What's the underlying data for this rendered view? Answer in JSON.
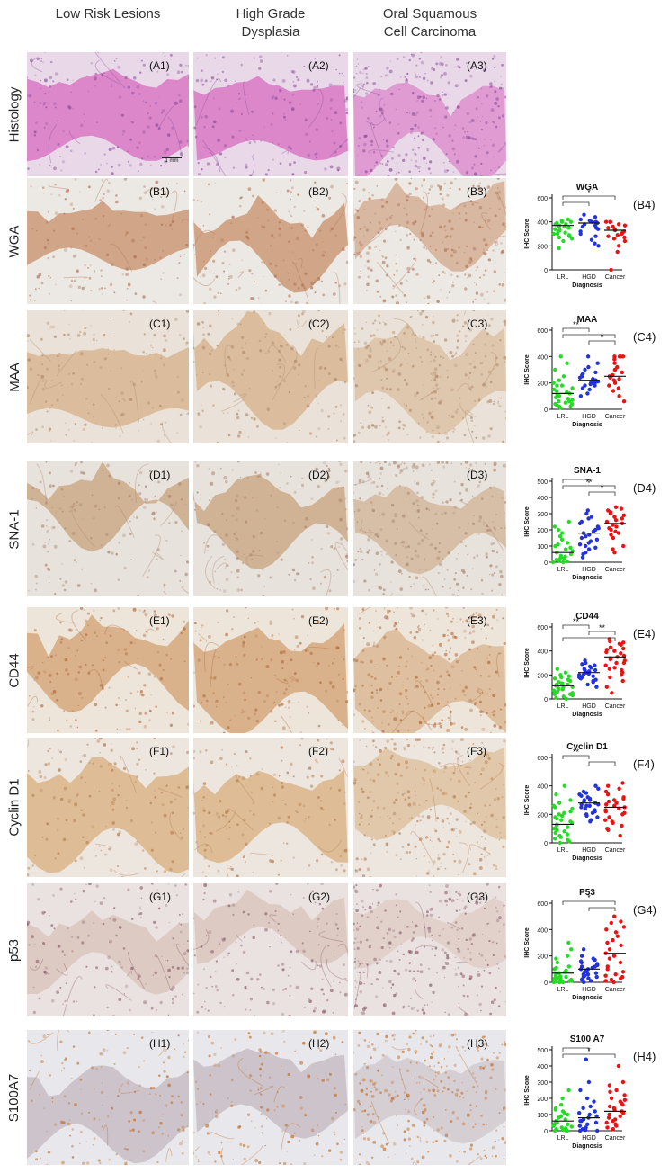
{
  "columns": [
    "Low Risk Lesions",
    "High Grade Dysplasia",
    "Oral Squamous Cell Carcinoma"
  ],
  "column_lines": [
    [
      "Low Risk Lesions"
    ],
    [
      "High Grade",
      "Dysplasia"
    ],
    [
      "Oral Squamous",
      "Cell Carcinoma"
    ]
  ],
  "rows": [
    {
      "label": "Histology",
      "panels": [
        "(A1)",
        "(A2)",
        "(A3)"
      ],
      "scalebar": "1 mm"
    },
    {
      "label": "WGA",
      "panels": [
        "(B1)",
        "(B2)",
        "(B3)"
      ],
      "plot_label": "(B4)"
    },
    {
      "label": "MAA",
      "panels": [
        "(C1)",
        "(C2)",
        "(C3)"
      ],
      "plot_label": "(C4)"
    },
    {
      "label": "SNA-1",
      "panels": [
        "(D1)",
        "(D2)",
        "(D3)"
      ],
      "plot_label": "(D4)"
    },
    {
      "label": "CD44",
      "panels": [
        "(E1)",
        "(E2)",
        "(E3)"
      ],
      "plot_label": "(E4)"
    },
    {
      "label": "Cyclin D1",
      "panels": [
        "(F1)",
        "(F2)",
        "(F3)"
      ],
      "plot_label": "(F4)"
    },
    {
      "label": "p53",
      "panels": [
        "(G1)",
        "(G2)",
        "(G3)"
      ],
      "plot_label": "(G4)"
    },
    {
      "label": "S100A7",
      "panels": [
        "(H1)",
        "(H2)",
        "(H3)"
      ],
      "plot_label": "(H4)"
    }
  ],
  "colors": {
    "LRL": "#22dd22",
    "HGD": "#2233dd",
    "Cancer": "#ee1111"
  },
  "chart_data": [
    {
      "type": "scatter",
      "title": "WGA",
      "xlabel": "Diagnosis",
      "ylabel": "IHC Score",
      "categories": [
        "LRL",
        "HGD",
        "Cancer"
      ],
      "ylim": [
        0,
        600
      ],
      "yticks": [
        0,
        200,
        400,
        600
      ],
      "series": [
        {
          "values": [
            380,
            400,
            360,
            340,
            300,
            420,
            390,
            370,
            350,
            330,
            310,
            280,
            260,
            240,
            180,
            400,
            410,
            360,
            320,
            290,
            380,
            350,
            300,
            270
          ],
          "mean": 370
        },
        {
          "values": [
            400,
            420,
            380,
            360,
            340,
            300,
            280,
            250,
            440,
            460,
            410,
            390,
            370,
            320,
            220,
            200,
            400,
            350
          ],
          "mean": 390
        },
        {
          "values": [
            400,
            400,
            400,
            400,
            380,
            360,
            340,
            320,
            300,
            280,
            260,
            240,
            200,
            150,
            0,
            330,
            310,
            350,
            370,
            290,
            270
          ],
          "mean": 330
        }
      ],
      "comparisons": [
        {
          "from": "LRL",
          "to": "Cancer",
          "label": "*"
        },
        {
          "from": "LRL",
          "to": "HGD",
          "label": ""
        }
      ]
    },
    {
      "type": "scatter",
      "title": "MAA",
      "xlabel": "Diagnosis",
      "ylabel": "IHC Score",
      "categories": [
        "LRL",
        "HGD",
        "Cancer"
      ],
      "ylim": [
        0,
        600
      ],
      "yticks": [
        0,
        200,
        400,
        600
      ],
      "series": [
        {
          "values": [
            20,
            40,
            60,
            80,
            100,
            120,
            140,
            160,
            180,
            200,
            250,
            300,
            350,
            400,
            30,
            50,
            70,
            90,
            110,
            130,
            10,
            20,
            40,
            60,
            150,
            180,
            220
          ],
          "mean": 120
        },
        {
          "values": [
            150,
            180,
            200,
            220,
            240,
            260,
            280,
            300,
            320,
            350,
            400,
            160,
            190,
            210,
            230,
            250,
            270,
            120,
            100,
            200,
            180,
            220
          ],
          "mean": 220
        },
        {
          "values": [
            400,
            400,
            400,
            400,
            400,
            380,
            350,
            320,
            300,
            280,
            260,
            240,
            220,
            200,
            180,
            160,
            140,
            100,
            60,
            300,
            250,
            230
          ],
          "mean": 250
        }
      ],
      "comparisons": [
        {
          "from": "LRL",
          "to": "HGD",
          "label": "**"
        },
        {
          "from": "LRL",
          "to": "Cancer",
          "label": ""
        },
        {
          "from": "HGD",
          "to": "Cancer",
          "label": "*"
        }
      ]
    },
    {
      "type": "scatter",
      "title": "SNA-1",
      "xlabel": "Diagnosis",
      "ylabel": "IHC Score",
      "categories": [
        "LRL",
        "HGD",
        "Cancer"
      ],
      "ylim": [
        0,
        500
      ],
      "yticks": [
        0,
        100,
        200,
        300,
        400,
        500
      ],
      "series": [
        {
          "values": [
            0,
            10,
            20,
            30,
            40,
            50,
            60,
            80,
            100,
            120,
            140,
            160,
            180,
            200,
            220,
            250,
            0,
            5,
            15,
            25,
            35,
            70,
            90,
            110
          ],
          "mean": 60
        },
        {
          "values": [
            50,
            80,
            100,
            120,
            150,
            180,
            200,
            220,
            250,
            280,
            300,
            320,
            60,
            90,
            130,
            160,
            190,
            210,
            240,
            270,
            110,
            140,
            170,
            30
          ],
          "mean": 180
        },
        {
          "values": [
            150,
            180,
            200,
            220,
            240,
            260,
            280,
            300,
            320,
            340,
            170,
            190,
            210,
            230,
            250,
            270,
            290,
            310,
            100,
            80,
            60,
            330
          ],
          "mean": 240
        }
      ],
      "comparisons": [
        {
          "from": "LRL",
          "to": "HGD",
          "label": ""
        },
        {
          "from": "LRL",
          "to": "Cancer",
          "label": "**"
        },
        {
          "from": "HGD",
          "to": "Cancer",
          "label": "*"
        }
      ]
    },
    {
      "type": "scatter",
      "title": "CD44",
      "xlabel": "Diagnosis",
      "ylabel": "IHC Score",
      "categories": [
        "LRL",
        "HGD",
        "Cancer"
      ],
      "ylim": [
        0,
        600
      ],
      "yticks": [
        0,
        200,
        400,
        600
      ],
      "series": [
        {
          "values": [
            0,
            20,
            40,
            60,
            80,
            100,
            120,
            140,
            160,
            180,
            200,
            220,
            250,
            10,
            30,
            50,
            70,
            90,
            110,
            130,
            150,
            170,
            190,
            60,
            80,
            100,
            120,
            40
          ],
          "mean": 110
        },
        {
          "values": [
            100,
            140,
            160,
            180,
            200,
            220,
            240,
            260,
            280,
            300,
            320,
            150,
            170,
            190,
            210,
            230,
            250,
            270,
            200,
            220,
            240,
            180,
            120,
            290
          ],
          "mean": 220
        },
        {
          "values": [
            100,
            150,
            200,
            250,
            300,
            350,
            400,
            420,
            450,
            480,
            500,
            380,
            360,
            340,
            320,
            280,
            260,
            240,
            220,
            430,
            460,
            470,
            390,
            410,
            300,
            330,
            50,
            180
          ],
          "mean": 350
        }
      ],
      "comparisons": [
        {
          "from": "LRL",
          "to": "HGD",
          "label": "**"
        },
        {
          "from": "HGD",
          "to": "Cancer",
          "label": "**"
        },
        {
          "from": "LRL",
          "to": "Cancer",
          "label": ""
        }
      ]
    },
    {
      "type": "scatter",
      "title": "Cyclin D1",
      "xlabel": "Diagnosis",
      "ylabel": "IHC Score",
      "categories": [
        "LRL",
        "HGD",
        "Cancer"
      ],
      "ylim": [
        0,
        600
      ],
      "yticks": [
        0,
        200,
        400,
        600
      ],
      "series": [
        {
          "values": [
            0,
            20,
            40,
            60,
            80,
            100,
            120,
            140,
            160,
            180,
            200,
            220,
            240,
            260,
            300,
            340,
            400,
            10,
            30,
            50,
            70,
            90,
            110,
            130,
            150,
            170,
            190,
            210,
            250,
            280
          ],
          "mean": 130
        },
        {
          "values": [
            150,
            180,
            200,
            220,
            240,
            260,
            280,
            300,
            320,
            340,
            360,
            380,
            400,
            160,
            190,
            210,
            230,
            250,
            270,
            290,
            310,
            330,
            350,
            270,
            260,
            300
          ],
          "mean": 280
        },
        {
          "values": [
            50,
            100,
            150,
            200,
            220,
            240,
            260,
            280,
            300,
            320,
            340,
            360,
            380,
            400,
            420,
            180,
            160,
            140,
            120,
            90,
            210,
            230,
            250,
            270,
            290,
            310
          ],
          "mean": 250
        }
      ],
      "comparisons": [
        {
          "from": "LRL",
          "to": "HGD",
          "label": "**"
        },
        {
          "from": "HGD",
          "to": "Cancer",
          "label": ""
        }
      ]
    },
    {
      "type": "scatter",
      "title": "P53",
      "xlabel": "Diagnosis",
      "ylabel": "IHC Score",
      "categories": [
        "LRL",
        "HGD",
        "Cancer"
      ],
      "ylim": [
        0,
        600
      ],
      "yticks": [
        0,
        200,
        400,
        600
      ],
      "series": [
        {
          "values": [
            0,
            10,
            20,
            30,
            40,
            50,
            60,
            80,
            100,
            120,
            150,
            180,
            200,
            250,
            300,
            0,
            5,
            15,
            25,
            35,
            45,
            70,
            90,
            110,
            0,
            10,
            20
          ],
          "mean": 70
        },
        {
          "values": [
            0,
            20,
            40,
            60,
            80,
            100,
            120,
            140,
            160,
            180,
            200,
            250,
            10,
            30,
            50,
            70,
            90,
            110,
            130,
            150,
            170,
            60,
            80,
            100,
            120,
            40
          ],
          "mean": 100
        },
        {
          "values": [
            0,
            20,
            40,
            60,
            100,
            150,
            200,
            250,
            300,
            350,
            400,
            450,
            500,
            10,
            30,
            320,
            380,
            420,
            280,
            220,
            180,
            120,
            80,
            50,
            460
          ],
          "mean": 220
        }
      ],
      "comparisons": [
        {
          "from": "LRL",
          "to": "Cancer",
          "label": "*"
        },
        {
          "from": "HGD",
          "to": "Cancer",
          "label": ""
        }
      ]
    },
    {
      "type": "scatter",
      "title": "S100 A7",
      "xlabel": "Diagnosis",
      "ylabel": "IHC Score",
      "categories": [
        "LRL",
        "HGD",
        "Cancer"
      ],
      "ylim": [
        0,
        500
      ],
      "yticks": [
        0,
        100,
        200,
        300,
        400,
        500
      ],
      "series": [
        {
          "values": [
            0,
            10,
            20,
            30,
            40,
            50,
            60,
            80,
            100,
            120,
            140,
            160,
            200,
            250,
            0,
            5,
            15,
            25,
            35,
            45,
            70,
            90,
            110,
            130,
            0
          ],
          "mean": 60
        },
        {
          "values": [
            0,
            20,
            40,
            60,
            80,
            100,
            120,
            150,
            180,
            200,
            250,
            300,
            440,
            440,
            10,
            30,
            50,
            70,
            90,
            110,
            0,
            5,
            140,
            60
          ],
          "mean": 80
        },
        {
          "values": [
            20,
            40,
            60,
            80,
            100,
            120,
            140,
            160,
            180,
            200,
            220,
            250,
            280,
            300,
            400,
            30,
            50,
            70,
            90,
            110,
            130,
            150,
            170,
            190,
            10,
            240
          ],
          "mean": 120
        }
      ],
      "comparisons": [
        {
          "from": "LRL",
          "to": "HGD",
          "label": ""
        },
        {
          "from": "LRL",
          "to": "Cancer",
          "label": "*"
        }
      ]
    }
  ]
}
